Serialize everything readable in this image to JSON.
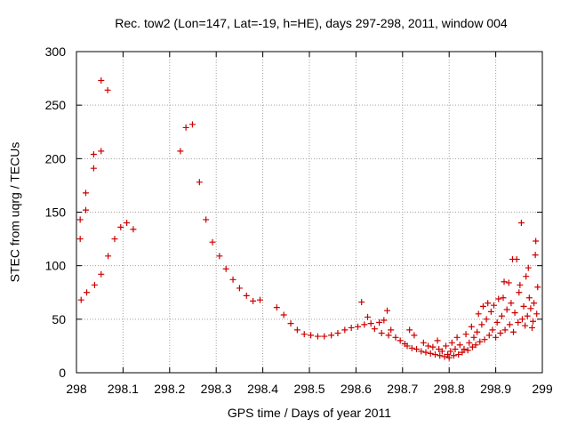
{
  "chart_data": {
    "type": "scatter",
    "title": "Rec. tow2 (Lon=147, Lat=-19, h=HE), days 297-298, 2011, window 004",
    "xlabel": "GPS time / Days of year 2011",
    "ylabel": "STEC from uqrg / TECUs",
    "xlim": [
      298,
      299
    ],
    "ylim": [
      0,
      300
    ],
    "xticks": [
      298,
      298.1,
      298.2,
      298.3,
      298.4,
      298.5,
      298.6,
      298.7,
      298.8,
      298.9,
      299
    ],
    "xtick_labels": [
      "298",
      "298.1",
      "298.2",
      "298.3",
      "298.4",
      "298.5",
      "298.6",
      "298.7",
      "298.8",
      "298.9",
      "299"
    ],
    "yticks": [
      0,
      50,
      100,
      150,
      200,
      250,
      300
    ],
    "ytick_labels": [
      "0",
      "50",
      "100",
      "150",
      "200",
      "250",
      "300"
    ],
    "grid": true,
    "marker": "+",
    "color": "#cc0000",
    "points": [
      [
        298.008,
        143
      ],
      [
        298.008,
        125
      ],
      [
        298.01,
        68
      ],
      [
        298.02,
        168
      ],
      [
        298.02,
        152
      ],
      [
        298.022,
        75
      ],
      [
        298.037,
        204
      ],
      [
        298.037,
        191
      ],
      [
        298.039,
        82
      ],
      [
        298.053,
        273
      ],
      [
        298.053,
        207
      ],
      [
        298.053,
        92
      ],
      [
        298.067,
        264
      ],
      [
        298.068,
        109
      ],
      [
        298.082,
        125
      ],
      [
        298.095,
        136
      ],
      [
        298.108,
        140
      ],
      [
        298.122,
        134
      ],
      [
        298.223,
        207
      ],
      [
        298.235,
        229
      ],
      [
        298.249,
        232
      ],
      [
        298.264,
        178
      ],
      [
        298.278,
        143
      ],
      [
        298.292,
        122
      ],
      [
        298.307,
        109
      ],
      [
        298.321,
        97
      ],
      [
        298.336,
        87
      ],
      [
        298.35,
        79
      ],
      [
        298.365,
        72
      ],
      [
        298.379,
        67
      ],
      [
        298.394,
        68
      ],
      [
        298.43,
        61
      ],
      [
        298.445,
        54
      ],
      [
        298.46,
        46
      ],
      [
        298.474,
        40
      ],
      [
        298.489,
        36
      ],
      [
        298.503,
        35
      ],
      [
        298.518,
        34
      ],
      [
        298.532,
        34
      ],
      [
        298.547,
        35
      ],
      [
        298.561,
        37
      ],
      [
        298.576,
        40
      ],
      [
        298.59,
        42
      ],
      [
        298.604,
        43
      ],
      [
        298.612,
        66
      ],
      [
        298.618,
        45
      ],
      [
        298.625,
        52
      ],
      [
        298.632,
        46
      ],
      [
        298.64,
        41
      ],
      [
        298.65,
        47
      ],
      [
        298.655,
        37
      ],
      [
        298.66,
        49
      ],
      [
        298.667,
        58
      ],
      [
        298.67,
        35
      ],
      [
        298.675,
        40
      ],
      [
        298.685,
        33
      ],
      [
        298.695,
        30
      ],
      [
        298.705,
        27
      ],
      [
        298.71,
        25
      ],
      [
        298.715,
        40
      ],
      [
        298.72,
        23
      ],
      [
        298.725,
        35
      ],
      [
        298.73,
        22
      ],
      [
        298.74,
        20
      ],
      [
        298.745,
        28
      ],
      [
        298.75,
        19
      ],
      [
        298.755,
        25
      ],
      [
        298.76,
        18
      ],
      [
        298.765,
        24
      ],
      [
        298.77,
        17
      ],
      [
        298.775,
        30
      ],
      [
        298.778,
        22
      ],
      [
        298.78,
        16
      ],
      [
        298.785,
        20
      ],
      [
        298.79,
        15
      ],
      [
        298.793,
        25
      ],
      [
        298.797,
        17
      ],
      [
        298.8,
        14
      ],
      [
        298.803,
        20
      ],
      [
        298.806,
        28
      ],
      [
        298.81,
        16
      ],
      [
        298.813,
        22
      ],
      [
        298.817,
        33
      ],
      [
        298.82,
        17
      ],
      [
        298.823,
        26
      ],
      [
        298.828,
        19
      ],
      [
        298.832,
        22
      ],
      [
        298.836,
        36
      ],
      [
        298.84,
        21
      ],
      [
        298.843,
        28
      ],
      [
        298.848,
        43
      ],
      [
        298.85,
        24
      ],
      [
        298.853,
        33
      ],
      [
        298.857,
        26
      ],
      [
        298.86,
        38
      ],
      [
        298.863,
        55
      ],
      [
        298.866,
        29
      ],
      [
        298.87,
        45
      ],
      [
        298.873,
        62
      ],
      [
        298.876,
        31
      ],
      [
        298.88,
        50
      ],
      [
        298.883,
        65
      ],
      [
        298.886,
        35
      ],
      [
        298.89,
        57
      ],
      [
        298.893,
        40
      ],
      [
        298.896,
        63
      ],
      [
        298.9,
        33
      ],
      [
        298.903,
        47
      ],
      [
        298.906,
        69
      ],
      [
        298.91,
        37
      ],
      [
        298.913,
        53
      ],
      [
        298.916,
        70
      ],
      [
        298.918,
        85
      ],
      [
        298.92,
        40
      ],
      [
        298.924,
        59
      ],
      [
        298.928,
        84
      ],
      [
        298.93,
        45
      ],
      [
        298.933,
        65
      ],
      [
        298.936,
        106
      ],
      [
        298.938,
        38
      ],
      [
        298.941,
        56
      ],
      [
        298.945,
        106
      ],
      [
        298.948,
        47
      ],
      [
        298.95,
        75
      ],
      [
        298.952,
        82
      ],
      [
        298.955,
        140
      ],
      [
        298.957,
        50
      ],
      [
        298.96,
        62
      ],
      [
        298.963,
        44
      ],
      [
        298.965,
        90
      ],
      [
        298.968,
        53
      ],
      [
        298.97,
        98
      ],
      [
        298.972,
        70
      ],
      [
        298.975,
        60
      ],
      [
        298.978,
        42
      ],
      [
        298.98,
        48
      ],
      [
        298.982,
        65
      ],
      [
        298.985,
        110
      ],
      [
        298.986,
        123
      ],
      [
        298.988,
        55
      ],
      [
        298.99,
        80
      ]
    ]
  }
}
